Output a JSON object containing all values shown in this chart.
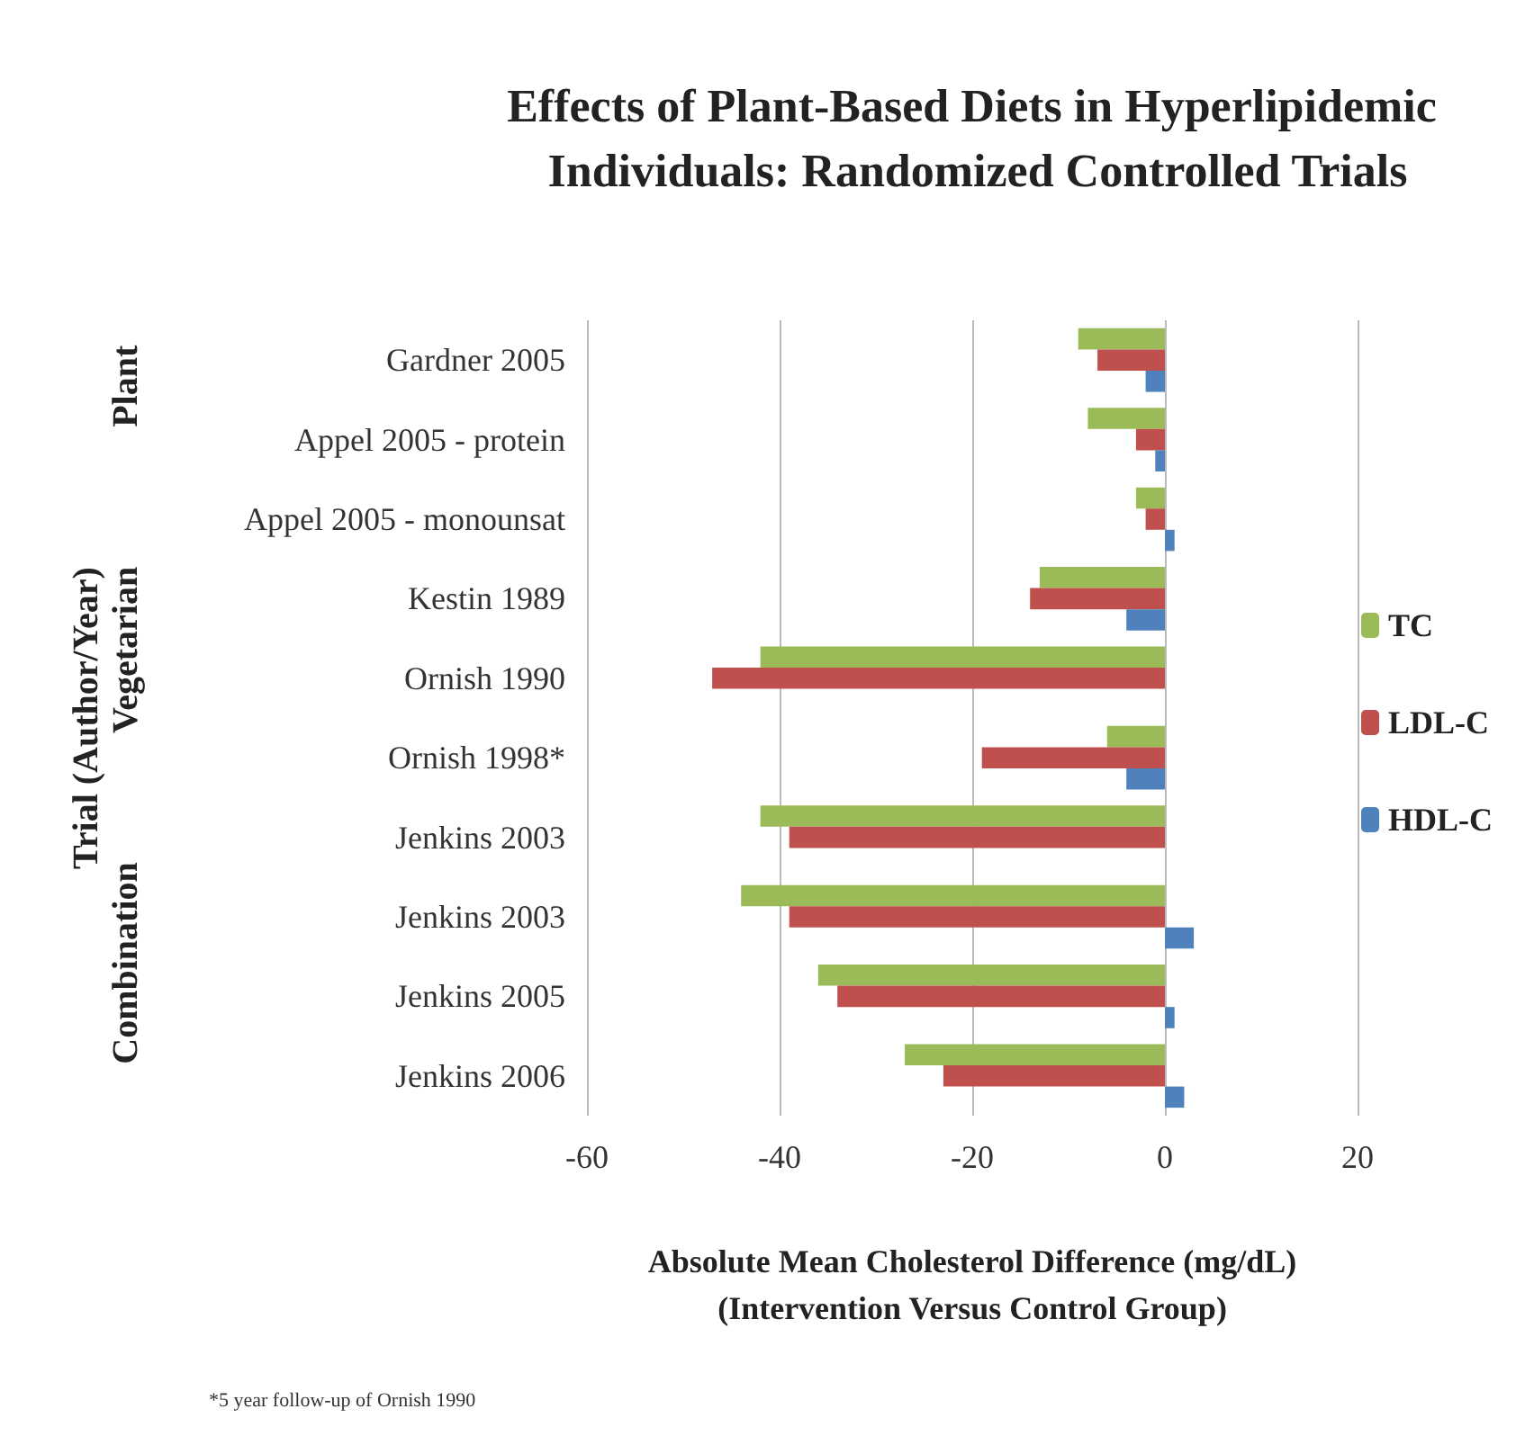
{
  "chart_data": {
    "type": "bar",
    "orientation": "horizontal",
    "title": "Effects of Plant-Based Diets in Hyperlipidemic Individuals: Randomized Controlled Trials",
    "xlabel": "Absolute Mean Cholesterol Difference (mg/dL)\n(Intervention Versus Control Group)",
    "ylabel": "Trial (Author/Year)",
    "categories": [
      "Gardner 2005",
      "Appel 2005 - protein",
      "Appel 2005 - monounsat",
      "Kestin 1989",
      "Ornish 1990",
      "Ornish 1998*",
      "Jenkins 2003",
      "Jenkins 2003",
      "Jenkins 2005",
      "Jenkins 2006"
    ],
    "series": [
      {
        "name": "TC",
        "color": "#9bbb59",
        "values": [
          -9,
          -8,
          -3,
          -13,
          -42,
          -6,
          -42,
          -44,
          -36,
          -27
        ]
      },
      {
        "name": "LDL-C",
        "color": "#c0504d",
        "values": [
          -7,
          -3,
          -2,
          -14,
          -47,
          -19,
          -39,
          -39,
          -34,
          -23
        ]
      },
      {
        "name": "HDL-C",
        "color": "#4f81bd",
        "values": [
          -2,
          -1,
          1,
          -4,
          null,
          -4,
          null,
          3,
          1,
          2
        ]
      }
    ],
    "xlim": [
      -60,
      20
    ],
    "xticks": [
      -60,
      -40,
      -20,
      0,
      20
    ],
    "grid": "x",
    "legend": "right",
    "annotations": [
      "Plant",
      "Vegetarian",
      "Combination",
      "*5 year follow-up of Ornish 1990"
    ]
  }
}
